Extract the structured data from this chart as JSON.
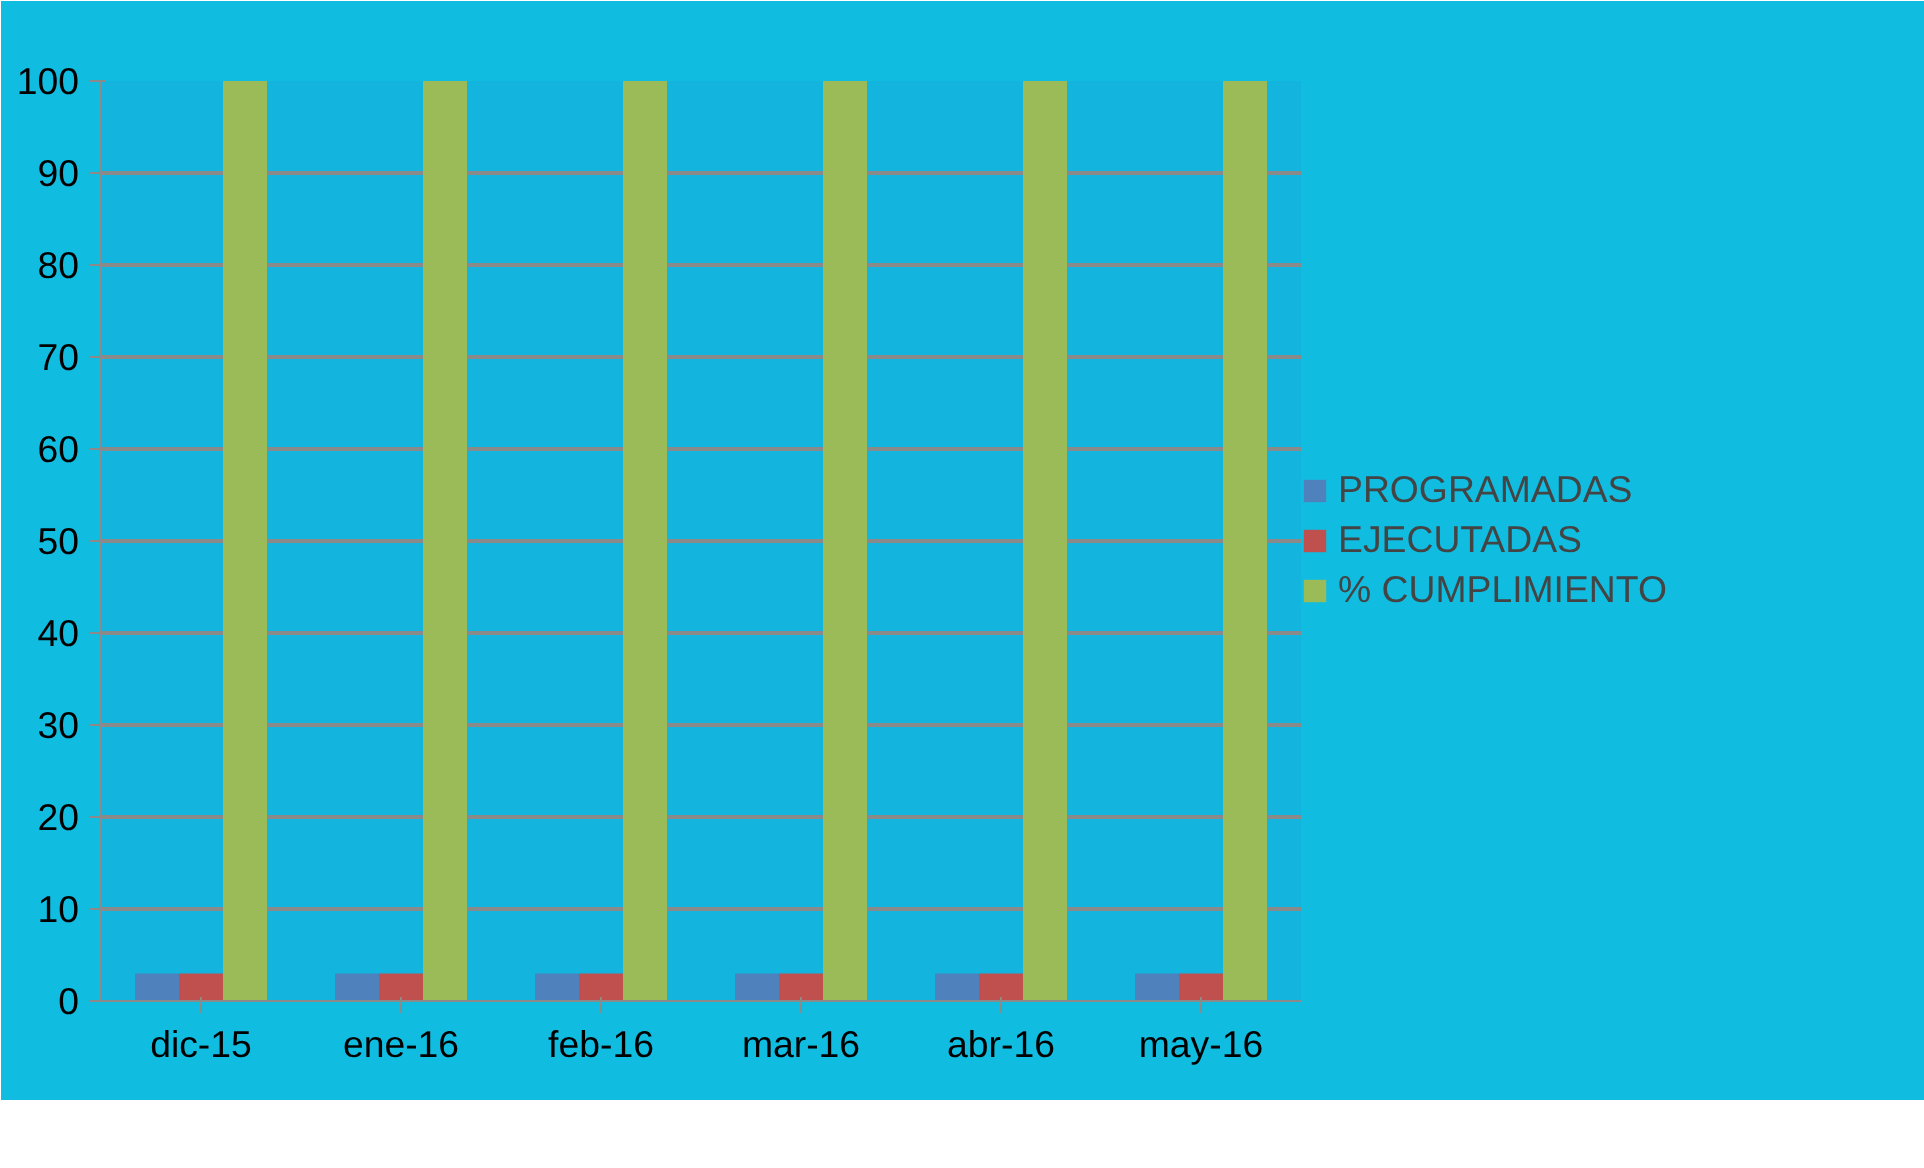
{
  "chart_data": {
    "type": "bar",
    "categories": [
      "dic-15",
      "ene-16",
      "feb-16",
      "mar-16",
      "abr-16",
      "may-16"
    ],
    "series": [
      {
        "name": "PROGRAMADAS",
        "color": "#4f81bd",
        "values": [
          3,
          3,
          3,
          3,
          3,
          3
        ]
      },
      {
        "name": "EJECUTADAS",
        "color": "#c0504d",
        "values": [
          3,
          3,
          3,
          3,
          3,
          3
        ]
      },
      {
        "name": "% CUMPLIMIENTO",
        "color": "#9bbb59",
        "values": [
          100,
          100,
          100,
          100,
          100,
          100
        ]
      }
    ],
    "ylim": [
      0,
      100
    ],
    "yticks": [
      0,
      10,
      20,
      30,
      40,
      50,
      60,
      70,
      80,
      90,
      100
    ],
    "grid": "y",
    "legend": "right"
  }
}
